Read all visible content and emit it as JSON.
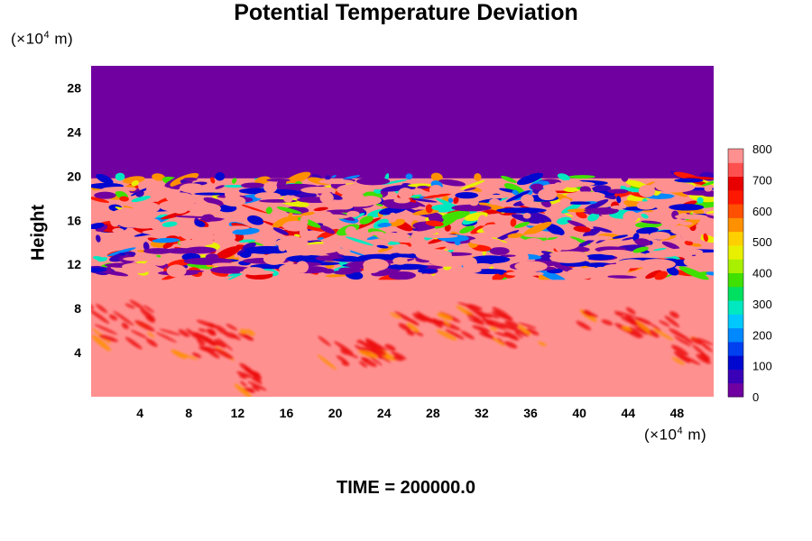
{
  "footer_text": "TIME = 200000.0",
  "chart_data": {
    "type": "heatmap",
    "title": "Potential Temperature Deviation",
    "ylabel": "Height",
    "xunit": {
      "prefix": "(×10",
      "exp": "4",
      "suffix": " m)"
    },
    "yunit": {
      "prefix": "(×10",
      "exp": "4",
      "suffix": " m)"
    },
    "xlim": [
      0,
      51
    ],
    "ylim": [
      0,
      30
    ],
    "x_ticks": [
      4,
      8,
      12,
      16,
      20,
      24,
      28,
      32,
      36,
      40,
      44,
      48
    ],
    "y_ticks": [
      4,
      8,
      12,
      16,
      20,
      24,
      28
    ],
    "colorbar": {
      "ticks": [
        0,
        100,
        200,
        300,
        400,
        500,
        600,
        700,
        800
      ],
      "range": [
        0,
        800
      ],
      "colors": [
        "#7000a0",
        "#3a00b8",
        "#0008d0",
        "#0040f0",
        "#0088ff",
        "#00c8ff",
        "#00e8c0",
        "#00e060",
        "#40e000",
        "#a8f000",
        "#e8f000",
        "#ffd000",
        "#ff9000",
        "#ff5000",
        "#ff1800",
        "#e80000",
        "#ff5050",
        "#ff9090"
      ]
    },
    "regions": [
      {
        "y_range": [
          20,
          30
        ],
        "value": 0,
        "description": "uniform upper layer"
      },
      {
        "y_range": [
          10,
          20
        ],
        "value": "mixed",
        "description": "turbulent layer with filaments spanning 0-800"
      },
      {
        "y_range": [
          0,
          10
        ],
        "value": 800,
        "description": "near-uniform lower layer with wave patches ~700"
      }
    ],
    "colors": {
      "top_region": "#7000a0",
      "bottom_region": "#ff9090",
      "patch": "#ee1010"
    }
  }
}
